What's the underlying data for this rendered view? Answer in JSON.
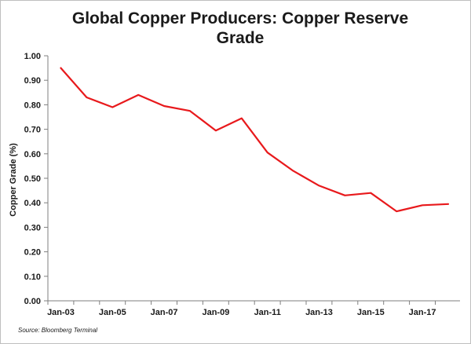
{
  "chart_data": {
    "type": "line",
    "title_line1": "Global Copper Producers: Copper Reserve",
    "title_line2": "Grade",
    "xlabel": "",
    "ylabel": "Copper Grade (%)",
    "source": "Source: Bloomberg Terminal",
    "ylim": [
      0,
      1.0
    ],
    "yticks": [
      "0.00",
      "0.10",
      "0.20",
      "0.30",
      "0.40",
      "0.50",
      "0.60",
      "0.70",
      "0.80",
      "0.90",
      "1.00"
    ],
    "xticks": [
      "Jan-03",
      "Jan-05",
      "Jan-07",
      "Jan-09",
      "Jan-11",
      "Jan-13",
      "Jan-15",
      "Jan-17"
    ],
    "x": [
      "Jan-03",
      "Jan-04",
      "Jan-05",
      "Jan-06",
      "Jan-07",
      "Jan-08",
      "Jan-09",
      "Jan-10",
      "Jan-11",
      "Jan-12",
      "Jan-13",
      "Jan-14",
      "Jan-15",
      "Jan-16",
      "Jan-17",
      "Jan-18"
    ],
    "series": [
      {
        "values": [
          0.95,
          0.83,
          0.79,
          0.84,
          0.795,
          0.775,
          0.695,
          0.745,
          0.605,
          0.53,
          0.47,
          0.43,
          0.44,
          0.365,
          0.39,
          0.395
        ],
        "color": "#e8191c"
      }
    ],
    "grid": false,
    "legend": "none"
  }
}
